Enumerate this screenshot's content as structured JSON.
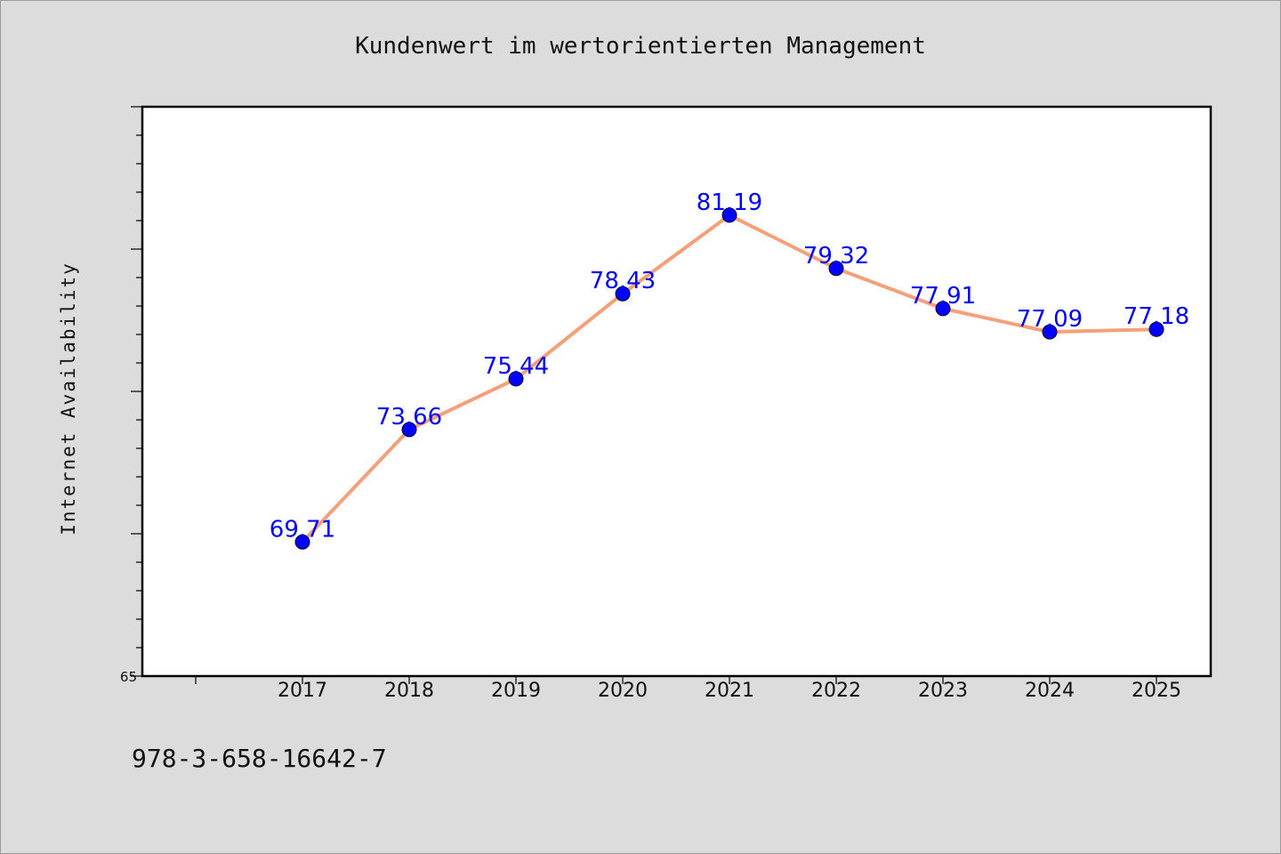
{
  "chart_data": {
    "type": "line",
    "title": "Kundenwert im wertorientierten Management",
    "xlabel": "",
    "ylabel": "Internet Availability",
    "categories": [
      "2017",
      "2018",
      "2019",
      "2020",
      "2021",
      "2022",
      "2023",
      "2024",
      "2025"
    ],
    "series": [
      {
        "values": [
          69.71,
          73.66,
          75.44,
          78.43,
          81.19,
          79.32,
          77.91,
          77.09,
          77.18
        ],
        "data_labels": [
          "69.71",
          "73.66",
          "75.44",
          "78.43",
          "81.19",
          "79.32",
          "77.91",
          "77.09",
          "77.18"
        ],
        "line_color": "#f5a07a",
        "marker_color": "#0000ff"
      }
    ],
    "ylim": [
      65,
      85
    ],
    "yticks_labeled": [
      "65"
    ],
    "grid": false,
    "legend": "none"
  },
  "footer": {
    "isbn": "978-3-658-16642-7"
  },
  "colors": {
    "background": "#dcdcdc",
    "plot_area": "#ffffff",
    "line": "#f5a07a",
    "marker": "#0000ff",
    "data_label": "#0000ff"
  }
}
